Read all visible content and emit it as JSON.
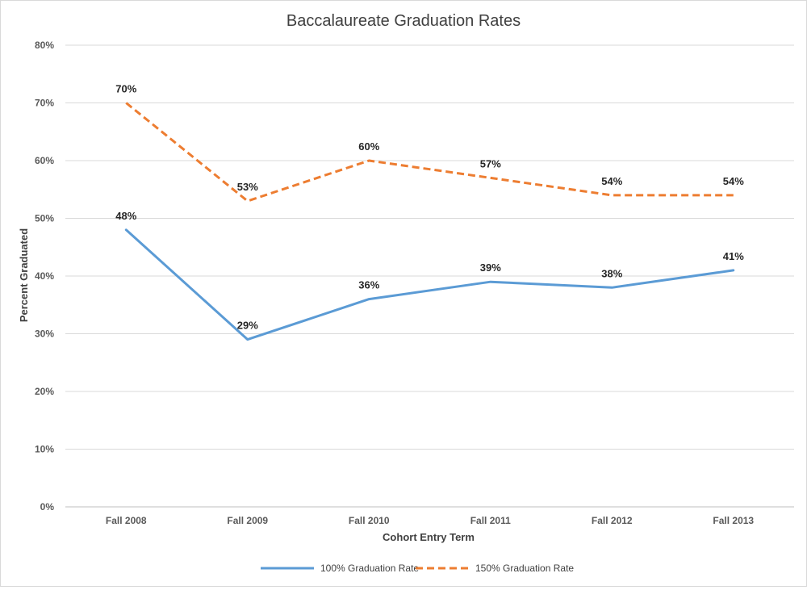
{
  "chart_data": {
    "type": "line",
    "title": "Baccalaureate Graduation Rates",
    "xlabel": "Cohort Entry Term",
    "ylabel": "Percent Graduated",
    "categories": [
      "Fall 2008",
      "Fall 2009",
      "Fall 2010",
      "Fall 2011",
      "Fall 2012",
      "Fall 2013"
    ],
    "ylim": [
      0,
      80
    ],
    "yticks": [
      "0%",
      "10%",
      "20%",
      "30%",
      "40%",
      "50%",
      "60%",
      "70%",
      "80%"
    ],
    "grid": true,
    "legend_position": "bottom",
    "series": [
      {
        "name": "100% Graduation Rate",
        "values": [
          48,
          29,
          36,
          39,
          38,
          41
        ],
        "labels": [
          "48%",
          "29%",
          "36%",
          "39%",
          "38%",
          "41%"
        ],
        "color": "#5B9BD5",
        "style": "solid"
      },
      {
        "name": "150% Graduation Rate",
        "values": [
          70,
          53,
          60,
          57,
          54,
          54
        ],
        "labels": [
          "70%",
          "53%",
          "60%",
          "57%",
          "54%",
          "54%"
        ],
        "color": "#ED7D31",
        "style": "dashed"
      }
    ]
  }
}
